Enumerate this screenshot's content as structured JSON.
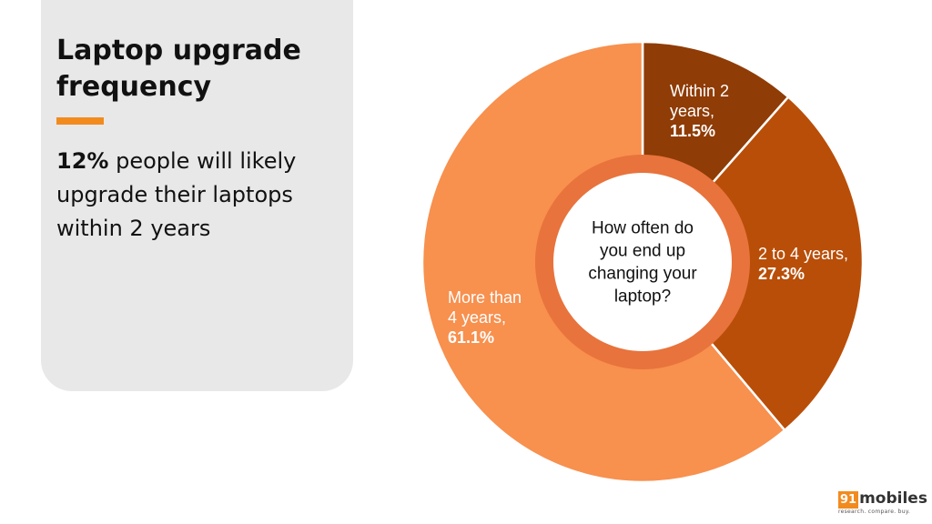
{
  "panel": {
    "title": "Laptop upgrade frequency",
    "summary_bold": "12%",
    "summary_rest": " people will likely upgrade their laptops within 2 years"
  },
  "chart_data": {
    "type": "pie",
    "style": "donut",
    "center_text": "How often do you end up changing your laptop?",
    "categories": [
      "Within 2 years",
      "2 to 4 years",
      "More than 4 years"
    ],
    "values": [
      11.5,
      27.3,
      61.1
    ],
    "value_labels": [
      "11.5%",
      "27.3%",
      "61.1%"
    ],
    "label_lines": [
      [
        "Within 2",
        "years,"
      ],
      [
        "2 to 4 years,"
      ],
      [
        "More than",
        "4 years,"
      ]
    ],
    "colors": [
      "#8f3c06",
      "#b94e08",
      "#f8904e"
    ],
    "label_color": "#ffffff",
    "legend": "none"
  },
  "logo": {
    "box": "91",
    "word": "mobiles",
    "tagline": "research. compare. buy."
  }
}
